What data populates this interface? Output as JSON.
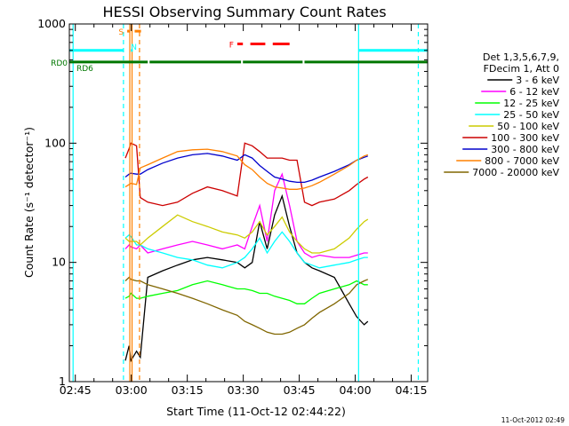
{
  "chart_data": {
    "type": "line",
    "title": "HESSI Observing Summary Count Rates",
    "xlabel": "Start Time (11-Oct-12 02:44:22)",
    "ylabel": "Count Rate (s⁻¹ detector⁻¹)",
    "x_unit": "minutes after 02:44:22",
    "xlim": [
      -1,
      95
    ],
    "ylim": [
      1,
      1000
    ],
    "yscale": "log",
    "grid": false,
    "legend_position": "right",
    "x_ticks": [
      {
        "label": "02:45",
        "x": 0.6
      },
      {
        "label": "03:00",
        "x": 15.6
      },
      {
        "label": "03:15",
        "x": 30.6
      },
      {
        "label": "03:30",
        "x": 45.6
      },
      {
        "label": "03:45",
        "x": 60.6
      },
      {
        "label": "04:00",
        "x": 75.6
      },
      {
        "label": "04:15",
        "x": 90.6
      }
    ],
    "y_ticks": [
      {
        "label": "1",
        "y": 1
      },
      {
        "label": "10",
        "y": 10
      },
      {
        "label": "100",
        "y": 100
      },
      {
        "label": "1000",
        "y": 1000
      }
    ],
    "legend_header": [
      "Det 1,3,5,6,7,9,",
      "FDecim 1, Att 0"
    ],
    "series": [
      {
        "name": "3 - 6 keV",
        "color": "#000000",
        "x": [
          14,
          15,
          15.5,
          17,
          18,
          20,
          24,
          28,
          32,
          36,
          40,
          44,
          46,
          48,
          50,
          52,
          54,
          56,
          58,
          60,
          62,
          64,
          66,
          70,
          74,
          76,
          78,
          79
        ],
        "y": [
          1.5,
          2,
          1.5,
          1.8,
          1.6,
          7.5,
          8.5,
          9.5,
          10.5,
          11,
          10.5,
          10,
          9,
          10,
          22,
          13,
          25,
          36,
          20,
          12,
          10,
          9,
          8.5,
          7.5,
          4.5,
          3.5,
          3,
          3.2
        ]
      },
      {
        "name": "6 - 12 keV",
        "color": "#ff00ff",
        "x": [
          14,
          15,
          15.5,
          17,
          18,
          20,
          24,
          28,
          32,
          36,
          40,
          44,
          46,
          48,
          50,
          52,
          54,
          56,
          58,
          60,
          62,
          64,
          66,
          70,
          74,
          76,
          78,
          79
        ],
        "y": [
          13,
          14,
          13.5,
          13,
          14,
          12,
          13,
          14,
          15,
          14,
          13,
          14,
          13,
          20,
          30,
          15,
          40,
          55,
          30,
          15,
          12,
          11,
          11.5,
          11,
          11,
          11.5,
          12,
          12
        ]
      },
      {
        "name": "12 - 25 keV",
        "color": "#00ff00",
        "x": [
          14,
          15,
          15.5,
          17,
          18,
          20,
          24,
          28,
          32,
          36,
          40,
          44,
          46,
          48,
          50,
          52,
          54,
          56,
          58,
          60,
          62,
          64,
          66,
          70,
          74,
          76,
          78,
          79
        ],
        "y": [
          5,
          5.2,
          5.5,
          5,
          5,
          5.2,
          5.5,
          5.8,
          6.5,
          7,
          6.5,
          6,
          6,
          5.8,
          5.5,
          5.5,
          5.2,
          5,
          4.8,
          4.5,
          4.5,
          5,
          5.5,
          6,
          6.5,
          7,
          6.5,
          6.5
        ]
      },
      {
        "name": "25 - 50 keV",
        "color": "#00ffff",
        "x": [
          14,
          15,
          15.5,
          17,
          18,
          20,
          24,
          28,
          32,
          36,
          40,
          44,
          46,
          48,
          50,
          52,
          54,
          56,
          58,
          60,
          62,
          64,
          66,
          70,
          74,
          76,
          78,
          79
        ],
        "y": [
          16,
          17,
          16.5,
          14,
          14,
          13,
          12,
          11,
          10.5,
          9.5,
          9,
          10,
          11,
          13,
          16,
          12,
          15,
          18,
          15,
          12,
          10,
          9.5,
          9,
          9.5,
          10,
          10.5,
          11,
          11
        ]
      },
      {
        "name": "50 - 100 keV",
        "color": "#cccc00",
        "x": [
          14,
          15,
          15.5,
          17,
          18,
          20,
          24,
          28,
          32,
          36,
          40,
          44,
          46,
          48,
          50,
          52,
          54,
          56,
          58,
          60,
          62,
          64,
          66,
          70,
          74,
          76,
          78,
          79
        ],
        "y": [
          16,
          15,
          15,
          15,
          14,
          16,
          20,
          25,
          22,
          20,
          18,
          17,
          16,
          18,
          22,
          17,
          20,
          24,
          18,
          15,
          13,
          12,
          12,
          13,
          16,
          19,
          22,
          23
        ]
      },
      {
        "name": "100 - 300 keV",
        "color": "#cc0000",
        "x": [
          14,
          15,
          15.5,
          17,
          18,
          20,
          24,
          28,
          32,
          36,
          40,
          44,
          46,
          48,
          50,
          52,
          54,
          56,
          58,
          60,
          62,
          64,
          66,
          70,
          74,
          76,
          78,
          79
        ],
        "y": [
          75,
          90,
          100,
          95,
          35,
          32,
          30,
          32,
          38,
          43,
          40,
          36,
          100,
          95,
          85,
          75,
          75,
          75,
          72,
          72,
          32,
          30,
          32,
          34,
          40,
          45,
          50,
          52
        ]
      },
      {
        "name": "300 - 800 keV",
        "color": "#0000cc",
        "x": [
          14,
          15,
          15.5,
          17,
          18,
          20,
          24,
          28,
          32,
          36,
          40,
          44,
          46,
          48,
          50,
          52,
          54,
          56,
          58,
          60,
          62,
          64,
          66,
          70,
          74,
          76,
          78,
          79
        ],
        "y": [
          52,
          55,
          56,
          55,
          55,
          60,
          68,
          75,
          80,
          82,
          78,
          72,
          80,
          75,
          65,
          58,
          52,
          50,
          48,
          47,
          47,
          49,
          52,
          58,
          66,
          72,
          76,
          78
        ]
      },
      {
        "name": "800 - 7000 keV",
        "color": "#ff8000",
        "x": [
          14,
          15,
          15.5,
          17,
          18,
          20,
          24,
          28,
          32,
          36,
          40,
          44,
          46,
          48,
          50,
          52,
          54,
          56,
          58,
          60,
          62,
          64,
          66,
          70,
          74,
          76,
          78,
          79
        ],
        "y": [
          43,
          45,
          46,
          45,
          62,
          66,
          75,
          85,
          88,
          89,
          85,
          78,
          66,
          60,
          52,
          46,
          43,
          42,
          41,
          41,
          42,
          44,
          47,
          55,
          65,
          72,
          78,
          80
        ]
      },
      {
        "name": "7000 - 20000 keV",
        "color": "#806600",
        "x": [
          14,
          15,
          15.5,
          17,
          18,
          20,
          24,
          28,
          32,
          36,
          40,
          44,
          46,
          48,
          50,
          52,
          54,
          56,
          58,
          60,
          62,
          64,
          66,
          70,
          74,
          76,
          78,
          79
        ],
        "y": [
          7,
          7.5,
          7.2,
          7,
          7,
          6.5,
          6,
          5.5,
          5,
          4.5,
          4,
          3.6,
          3.2,
          3,
          2.8,
          2.6,
          2.5,
          2.5,
          2.6,
          2.8,
          3,
          3.4,
          3.8,
          4.5,
          5.5,
          6.5,
          7,
          7.2
        ]
      }
    ],
    "state_bars": [
      {
        "label": "RD0",
        "color": "#007700",
        "y": 480,
        "segments": [
          [
            -1,
            20
          ],
          [
            20.5,
            45
          ],
          [
            45.5,
            61.5
          ],
          [
            62,
            95
          ]
        ]
      },
      {
        "label": "RD6",
        "color": "#007700",
        "y": 430,
        "segments": []
      },
      {
        "label": "",
        "color": "#00ffff",
        "y": 600,
        "segments": [
          [
            -1,
            13.5
          ],
          [
            15.5,
            16
          ],
          [
            76.5,
            95
          ]
        ]
      },
      {
        "label": "F",
        "color": "#ff0000",
        "y": 680,
        "segments": [
          [
            44,
            45.5
          ],
          [
            47.5,
            51.5
          ],
          [
            53.5,
            58
          ]
        ]
      },
      {
        "label": "S",
        "color": "#ff8000",
        "y": 870,
        "segments": [
          [
            14.5,
            15.2
          ]
        ]
      },
      {
        "label": "N",
        "color": "#00ffff",
        "y": 650,
        "segments": []
      },
      {
        "label": "",
        "color": "#ff8000",
        "y": 870,
        "segments": [
          [
            16.5,
            18.2
          ]
        ]
      }
    ],
    "vertical_lines": [
      {
        "x": 0,
        "color": "#00ffff",
        "style": "solid"
      },
      {
        "x": 13.5,
        "color": "#00ffff",
        "style": "dashed"
      },
      {
        "x": 15.2,
        "color": "#ff8000",
        "style": "solid"
      },
      {
        "x": 15.8,
        "color": "#ff8000",
        "style": "solid"
      },
      {
        "x": 17.8,
        "color": "#ff8000",
        "style": "dashed"
      },
      {
        "x": 76.5,
        "color": "#00ffff",
        "style": "solid"
      },
      {
        "x": 92.5,
        "color": "#00ffff",
        "style": "dashed"
      }
    ],
    "timestamp": "11-Oct-2012 02:49"
  }
}
